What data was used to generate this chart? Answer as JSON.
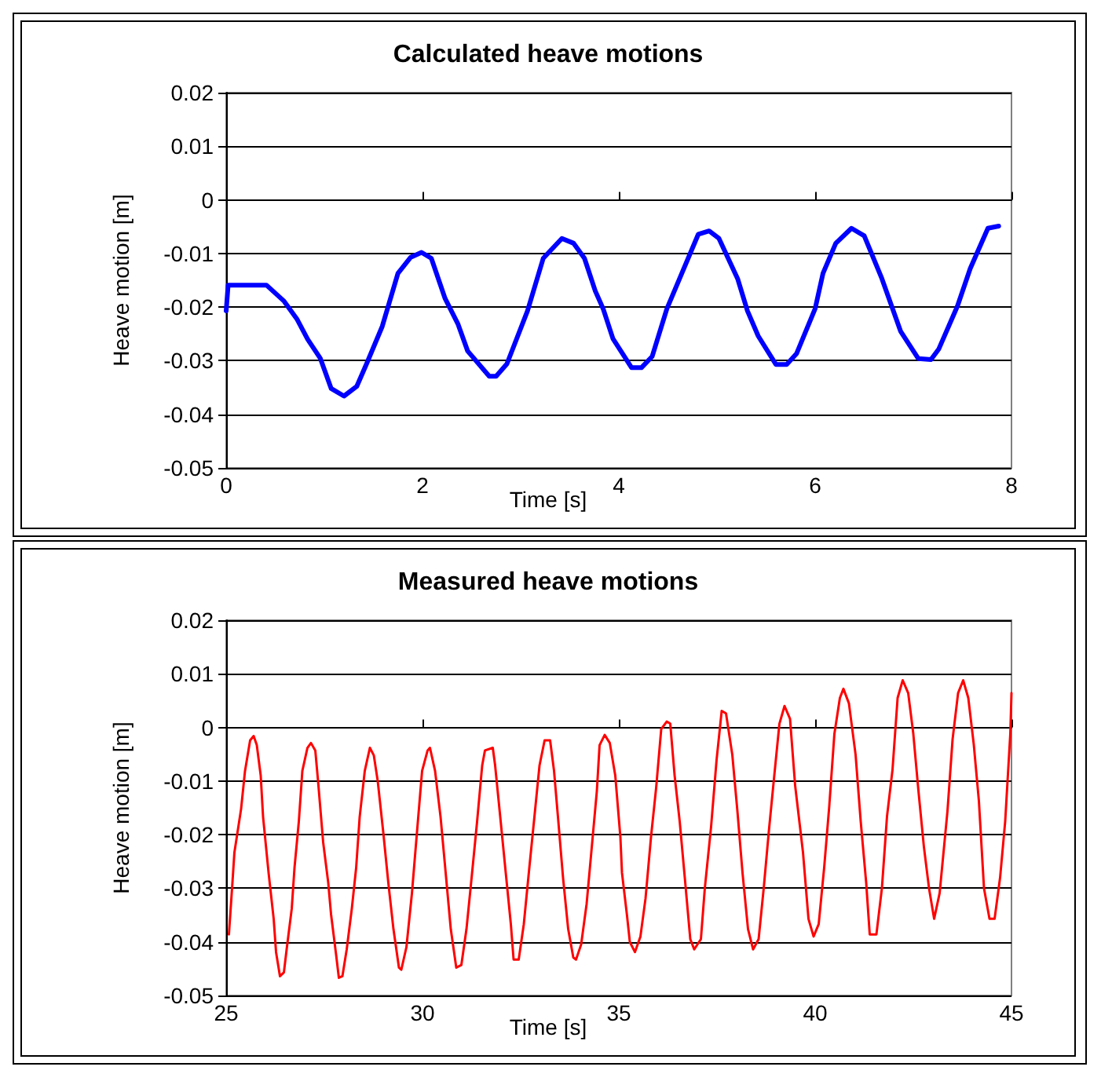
{
  "chart_data": [
    {
      "type": "line",
      "title": "Calculated heave motions",
      "xlabel": "Time [s]",
      "ylabel": "Heave motion [m]",
      "xlim": [
        0,
        8
      ],
      "xticks": [
        0,
        2,
        4,
        6,
        8
      ],
      "ylim": [
        -0.05,
        0.02
      ],
      "yticks": [
        -0.05,
        -0.04,
        -0.03,
        -0.02,
        -0.01,
        0,
        0.01,
        0.02
      ],
      "grid": "y",
      "marker": "none",
      "line_style": "solid",
      "series": [
        {
          "color": "#0000ff",
          "x": [
            0,
            0.02,
            0.41,
            0.59,
            0.72,
            0.83,
            0.96,
            1.07,
            1.2,
            1.33,
            1.43,
            1.59,
            1.75,
            1.88,
            1.99,
            2.09,
            2.23,
            2.36,
            2.46,
            2.68,
            2.75,
            2.86,
            3.07,
            3.23,
            3.42,
            3.54,
            3.65,
            3.76,
            3.84,
            3.94,
            4.13,
            4.23,
            4.34,
            4.49,
            4.63,
            4.81,
            4.92,
            5.02,
            5.21,
            5.31,
            5.42,
            5.6,
            5.71,
            5.81,
            6.0,
            6.08,
            6.21,
            6.37,
            6.5,
            6.68,
            6.87,
            7.05,
            7.18,
            7.26,
            7.45,
            7.58,
            7.76,
            7.87
          ],
          "values": [
            -0.0207,
            -0.0159,
            -0.0159,
            -0.0189,
            -0.0222,
            -0.026,
            -0.0296,
            -0.0352,
            -0.0366,
            -0.0348,
            -0.0306,
            -0.0236,
            -0.0137,
            -0.0107,
            -0.0098,
            -0.0109,
            -0.0184,
            -0.0231,
            -0.0282,
            -0.0329,
            -0.0329,
            -0.0306,
            -0.0207,
            -0.0109,
            -0.0072,
            -0.0081,
            -0.0109,
            -0.017,
            -0.0203,
            -0.0259,
            -0.0313,
            -0.0313,
            -0.0292,
            -0.0203,
            -0.0142,
            -0.0064,
            -0.0058,
            -0.0072,
            -0.0147,
            -0.0207,
            -0.0254,
            -0.0307,
            -0.0307,
            -0.0287,
            -0.0203,
            -0.0137,
            -0.0081,
            -0.0053,
            -0.0067,
            -0.0147,
            -0.0245,
            -0.0296,
            -0.0298,
            -0.0278,
            -0.0198,
            -0.0128,
            -0.0053,
            -0.0049
          ]
        }
      ]
    },
    {
      "type": "line",
      "title": "Measured heave motions",
      "xlabel": "Time [s]",
      "ylabel": "Heave motion [m]",
      "xlim": [
        25,
        45
      ],
      "xticks": [
        25,
        30,
        35,
        40,
        45
      ],
      "ylim": [
        -0.05,
        0.02
      ],
      "yticks": [
        -0.05,
        -0.04,
        -0.03,
        -0.02,
        -0.01,
        0,
        0.01,
        0.02
      ],
      "grid": "y",
      "marker": "none",
      "line_style": "solid",
      "series": [
        {
          "color": "#ff0000",
          "x": [
            25.07,
            25.15,
            25.21,
            25.38,
            25.48,
            25.61,
            25.7,
            25.78,
            25.88,
            25.94,
            26.08,
            26.21,
            26.27,
            26.37,
            26.47,
            26.54,
            26.67,
            26.74,
            26.85,
            26.94,
            27.07,
            27.16,
            27.27,
            27.34,
            27.47,
            27.6,
            27.67,
            27.8,
            27.87,
            27.96,
            28.07,
            28.2,
            28.31,
            28.4,
            28.53,
            28.66,
            28.76,
            28.86,
            29.0,
            29.13,
            29.26,
            29.4,
            29.46,
            29.59,
            29.73,
            29.86,
            29.99,
            30.13,
            30.19,
            30.32,
            30.46,
            30.59,
            30.72,
            30.86,
            30.99,
            31.12,
            31.25,
            31.39,
            31.52,
            31.59,
            31.79,
            31.85,
            31.98,
            32.12,
            32.25,
            32.32,
            32.45,
            32.58,
            32.72,
            32.85,
            32.98,
            33.11,
            33.25,
            33.35,
            33.45,
            33.58,
            33.71,
            33.84,
            33.91,
            34.04,
            34.18,
            34.31,
            34.44,
            34.51,
            34.64,
            34.77,
            34.91,
            35.04,
            35.08,
            35.21,
            35.28,
            35.41,
            35.55,
            35.68,
            35.82,
            35.95,
            36.08,
            36.22,
            36.31,
            36.42,
            36.55,
            36.68,
            36.82,
            36.92,
            37.09,
            37.19,
            37.35,
            37.49,
            37.62,
            37.73,
            37.89,
            38.02,
            38.15,
            38.29,
            38.42,
            38.56,
            38.69,
            38.82,
            38.96,
            39.09,
            39.22,
            39.36,
            39.49,
            39.69,
            39.83,
            39.96,
            40.09,
            40.23,
            40.36,
            40.49,
            40.63,
            40.72,
            40.86,
            41.03,
            41.16,
            41.3,
            41.39,
            41.56,
            41.7,
            41.83,
            41.97,
            42.1,
            42.23,
            42.37,
            42.5,
            42.63,
            42.77,
            42.9,
            43.03,
            43.17,
            43.37,
            43.5,
            43.64,
            43.77,
            43.9,
            44.04,
            44.17,
            44.3,
            44.44,
            44.57,
            44.71,
            44.84,
            44.97,
            45.0
          ],
          "values": [
            -0.0386,
            -0.03,
            -0.0233,
            -0.0152,
            -0.0081,
            -0.0024,
            -0.0016,
            -0.0033,
            -0.009,
            -0.0167,
            -0.0271,
            -0.0357,
            -0.0419,
            -0.0464,
            -0.0457,
            -0.0414,
            -0.0338,
            -0.0262,
            -0.0176,
            -0.0081,
            -0.0038,
            -0.0029,
            -0.0043,
            -0.01,
            -0.0214,
            -0.029,
            -0.0348,
            -0.0424,
            -0.0467,
            -0.0464,
            -0.0414,
            -0.0338,
            -0.0262,
            -0.0167,
            -0.0081,
            -0.0038,
            -0.0052,
            -0.01,
            -0.0195,
            -0.029,
            -0.0376,
            -0.0448,
            -0.0452,
            -0.041,
            -0.031,
            -0.0195,
            -0.0081,
            -0.0043,
            -0.0038,
            -0.0081,
            -0.0167,
            -0.0271,
            -0.0376,
            -0.0448,
            -0.0443,
            -0.0376,
            -0.0281,
            -0.0176,
            -0.0071,
            -0.0043,
            -0.0038,
            -0.0071,
            -0.0167,
            -0.0271,
            -0.0367,
            -0.0433,
            -0.0433,
            -0.0367,
            -0.0262,
            -0.0167,
            -0.0071,
            -0.0024,
            -0.0024,
            -0.0081,
            -0.0167,
            -0.0281,
            -0.0376,
            -0.0429,
            -0.0433,
            -0.0405,
            -0.0329,
            -0.0224,
            -0.0119,
            -0.0033,
            -0.0014,
            -0.0029,
            -0.009,
            -0.0205,
            -0.0271,
            -0.0352,
            -0.04,
            -0.0419,
            -0.039,
            -0.0319,
            -0.0204,
            -0.0113,
            -0.0003,
            0.0011,
            0.0007,
            -0.0089,
            -0.0175,
            -0.028,
            -0.0395,
            -0.0414,
            -0.0395,
            -0.03,
            -0.0185,
            -0.006,
            0.0031,
            0.0026,
            -0.0051,
            -0.0156,
            -0.0271,
            -0.0376,
            -0.0414,
            -0.0395,
            -0.03,
            -0.0194,
            -0.0089,
            0.0007,
            0.004,
            0.0016,
            -0.0108,
            -0.0233,
            -0.0357,
            -0.039,
            -0.0367,
            -0.0261,
            -0.0146,
            -0.0012,
            0.0055,
            0.0072,
            0.0045,
            -0.0051,
            -0.0175,
            -0.029,
            -0.0386,
            -0.0386,
            -0.03,
            -0.0166,
            -0.0079,
            0.0055,
            0.0088,
            0.0064,
            -0.0012,
            -0.0118,
            -0.0223,
            -0.03,
            -0.0357,
            -0.0309,
            -0.0156,
            -0.0022,
            0.0064,
            0.0088,
            0.0055,
            -0.0032,
            -0.0137,
            -0.03,
            -0.0357,
            -0.0357,
            -0.028,
            -0.0175,
            -0.0012,
            0.0064
          ]
        }
      ]
    }
  ]
}
